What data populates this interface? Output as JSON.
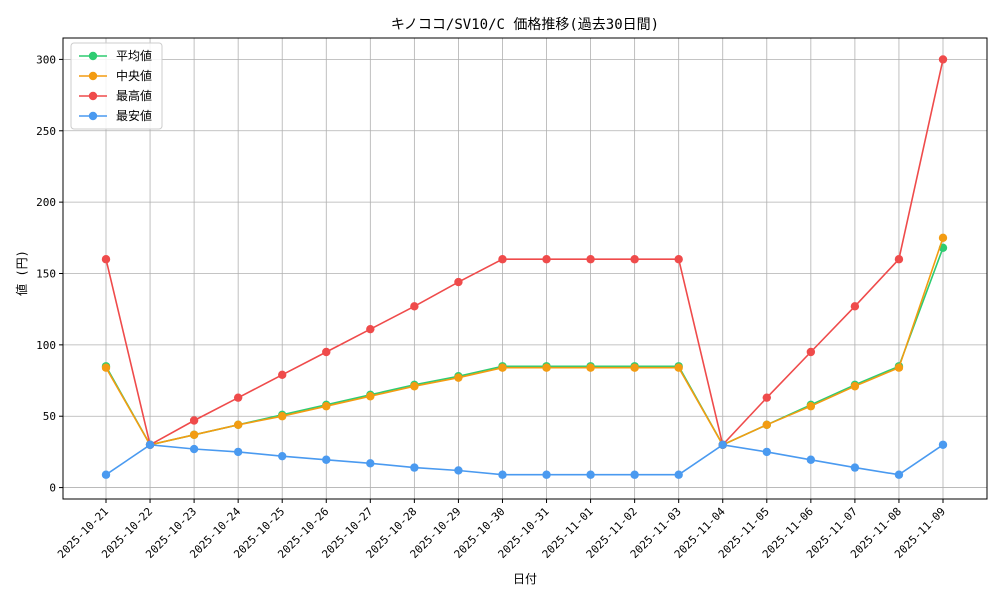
{
  "chart_data": {
    "type": "line",
    "title": "キノココ/SV10/C 価格推移(過去30日間)",
    "xlabel": "日付",
    "ylabel": "値 (円)",
    "ylim": [
      -8,
      315
    ],
    "yticks": [
      0,
      50,
      100,
      150,
      200,
      250,
      300
    ],
    "grid": true,
    "legend_position": "top-left",
    "categories": [
      "2025-10-21",
      "2025-10-22",
      "2025-10-23",
      "2025-10-24",
      "2025-10-25",
      "2025-10-26",
      "2025-10-27",
      "2025-10-28",
      "2025-10-29",
      "2025-10-30",
      "2025-10-31",
      "2025-11-01",
      "2025-11-02",
      "2025-11-03",
      "2025-11-04",
      "2025-11-05",
      "2025-11-06",
      "2025-11-07",
      "2025-11-08",
      "2025-11-09"
    ],
    "series": [
      {
        "name": "平均値",
        "color": "#2ecc71",
        "values": [
          85,
          30,
          37,
          44,
          51,
          58,
          65,
          72,
          78,
          85,
          85,
          85,
          85,
          85,
          30,
          44,
          58,
          72,
          85,
          168
        ]
      },
      {
        "name": "中央値",
        "color": "#f39c12",
        "values": [
          84,
          30,
          37,
          44,
          50,
          57,
          64,
          71,
          77,
          84,
          84,
          84,
          84,
          84,
          30,
          44,
          57,
          71,
          84,
          175
        ]
      },
      {
        "name": "最高値",
        "color": "#ef4b4b",
        "values": [
          160,
          30,
          47,
          63,
          79,
          95,
          111,
          127,
          144,
          160,
          160,
          160,
          160,
          160,
          30,
          63,
          95,
          127,
          160,
          300
        ]
      },
      {
        "name": "最安値",
        "color": "#4a9af0",
        "values": [
          9,
          30,
          27,
          25,
          22,
          19.5,
          17,
          14,
          12,
          9,
          9,
          9,
          9,
          9,
          30,
          25,
          19.5,
          14,
          9,
          30
        ]
      }
    ]
  }
}
